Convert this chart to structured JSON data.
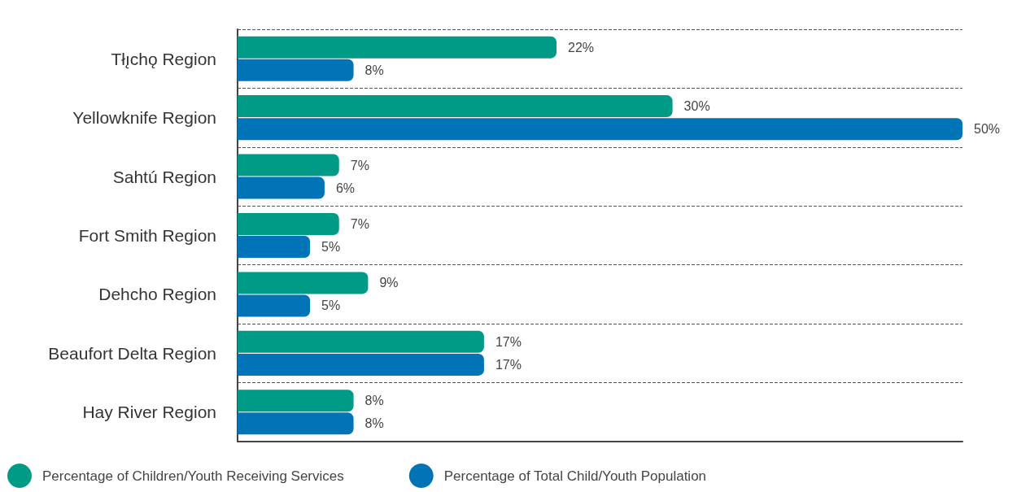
{
  "chart_data": {
    "type": "bar",
    "orientation": "horizontal",
    "categories": [
      "Tłı̨chǫ Region",
      "Yellowknife Region",
      "Sahtú Region",
      "Fort Smith Region",
      "Dehcho Region",
      "Beaufort Delta Region",
      "Hay River Region"
    ],
    "series": [
      {
        "name": "Percentage of Children/Youth Receiving Services",
        "color": "#009b86",
        "values": [
          22,
          30,
          7,
          7,
          9,
          17,
          8
        ],
        "value_labels": [
          "22%",
          "30%",
          "7%",
          "7%",
          "9%",
          "17%",
          "8%"
        ]
      },
      {
        "name": "Percentage of Total Child/Youth Population",
        "color": "#0074b7",
        "values": [
          8,
          50,
          6,
          5,
          5,
          17,
          8
        ],
        "value_labels": [
          "8%",
          "50%",
          "6%",
          "5%",
          "5%",
          "17%",
          "8%"
        ]
      }
    ],
    "grid": "y",
    "legend": "bottom left"
  }
}
